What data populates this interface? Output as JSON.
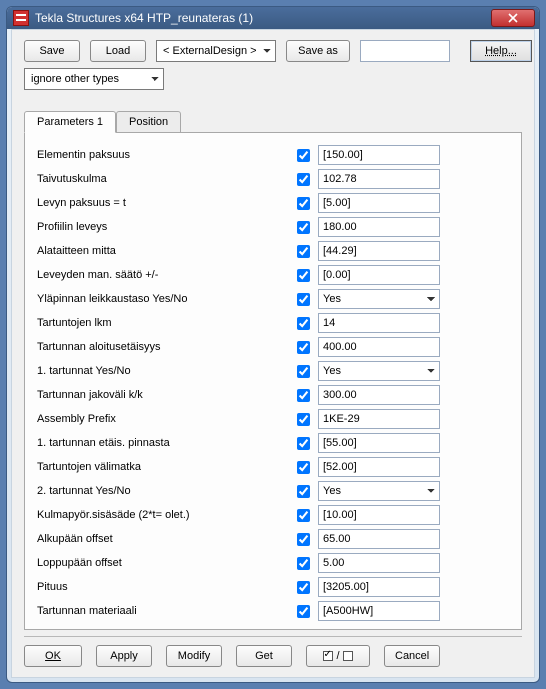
{
  "titlebar": {
    "title": "Tekla Structures x64  HTP_reunateras (1)"
  },
  "toolbar": {
    "save": "Save",
    "load": "Load",
    "preset": "< ExternalDesign >",
    "save_as": "Save as",
    "save_as_name": "",
    "help": "Help...",
    "filter": "ignore other types"
  },
  "tabs": {
    "t1": "Parameters 1",
    "t2": "Position"
  },
  "params": [
    {
      "label": "Elementin paksuus",
      "value": "[150.00]",
      "type": "text"
    },
    {
      "label": "Taivutuskulma",
      "value": "102.78",
      "type": "text"
    },
    {
      "label": "Levyn paksuus = t",
      "value": "[5.00]",
      "type": "text"
    },
    {
      "label": "Profiilin leveys",
      "value": "180.00",
      "type": "text"
    },
    {
      "label": "Alataitteen mitta",
      "value": "[44.29]",
      "type": "text"
    },
    {
      "label": "Leveyden man. säätö +/-",
      "value": "[0.00]",
      "type": "text"
    },
    {
      "label": "Yläpinnan leikkaustaso Yes/No",
      "value": "Yes",
      "type": "select"
    },
    {
      "label": "Tartuntojen lkm",
      "value": "14",
      "type": "text"
    },
    {
      "label": "Tartunnan aloitusetäisyys",
      "value": "400.00",
      "type": "text"
    },
    {
      "label": "1. tartunnat Yes/No",
      "value": "Yes",
      "type": "select"
    },
    {
      "label": "Tartunnan jakoväli k/k",
      "value": "300.00",
      "type": "text"
    },
    {
      "label": "Assembly Prefix",
      "value": "1KE-29",
      "type": "text"
    },
    {
      "label": "1. tartunnan etäis. pinnasta",
      "value": "[55.00]",
      "type": "text"
    },
    {
      "label": "Tartuntojen välimatka",
      "value": "[52.00]",
      "type": "text"
    },
    {
      "label": "2. tartunnat Yes/No",
      "value": "Yes",
      "type": "select"
    },
    {
      "label": "Kulmapyör.sisäsäde (2*t= olet.)",
      "value": "[10.00]",
      "type": "text"
    },
    {
      "label": "Alkupään offset",
      "value": "65.00",
      "type": "text"
    },
    {
      "label": "Loppupään offset",
      "value": "5.00",
      "type": "text"
    },
    {
      "label": "Pituus",
      "value": "[3205.00]",
      "type": "text"
    },
    {
      "label": "Tartunnan materiaali",
      "value": "[A500HW]",
      "type": "text"
    }
  ],
  "footer": {
    "ok": "OK",
    "apply": "Apply",
    "modify": "Modify",
    "get": "Get",
    "cancel": "Cancel"
  },
  "colors": {
    "titlebar_start": "#4a6d9c",
    "titlebar_end": "#3b5a82",
    "client_bg": "#f0f0f0",
    "tab_content_bg": "#fdfdfd",
    "input_border": "#9aaac0",
    "close_btn": "#c23030"
  }
}
